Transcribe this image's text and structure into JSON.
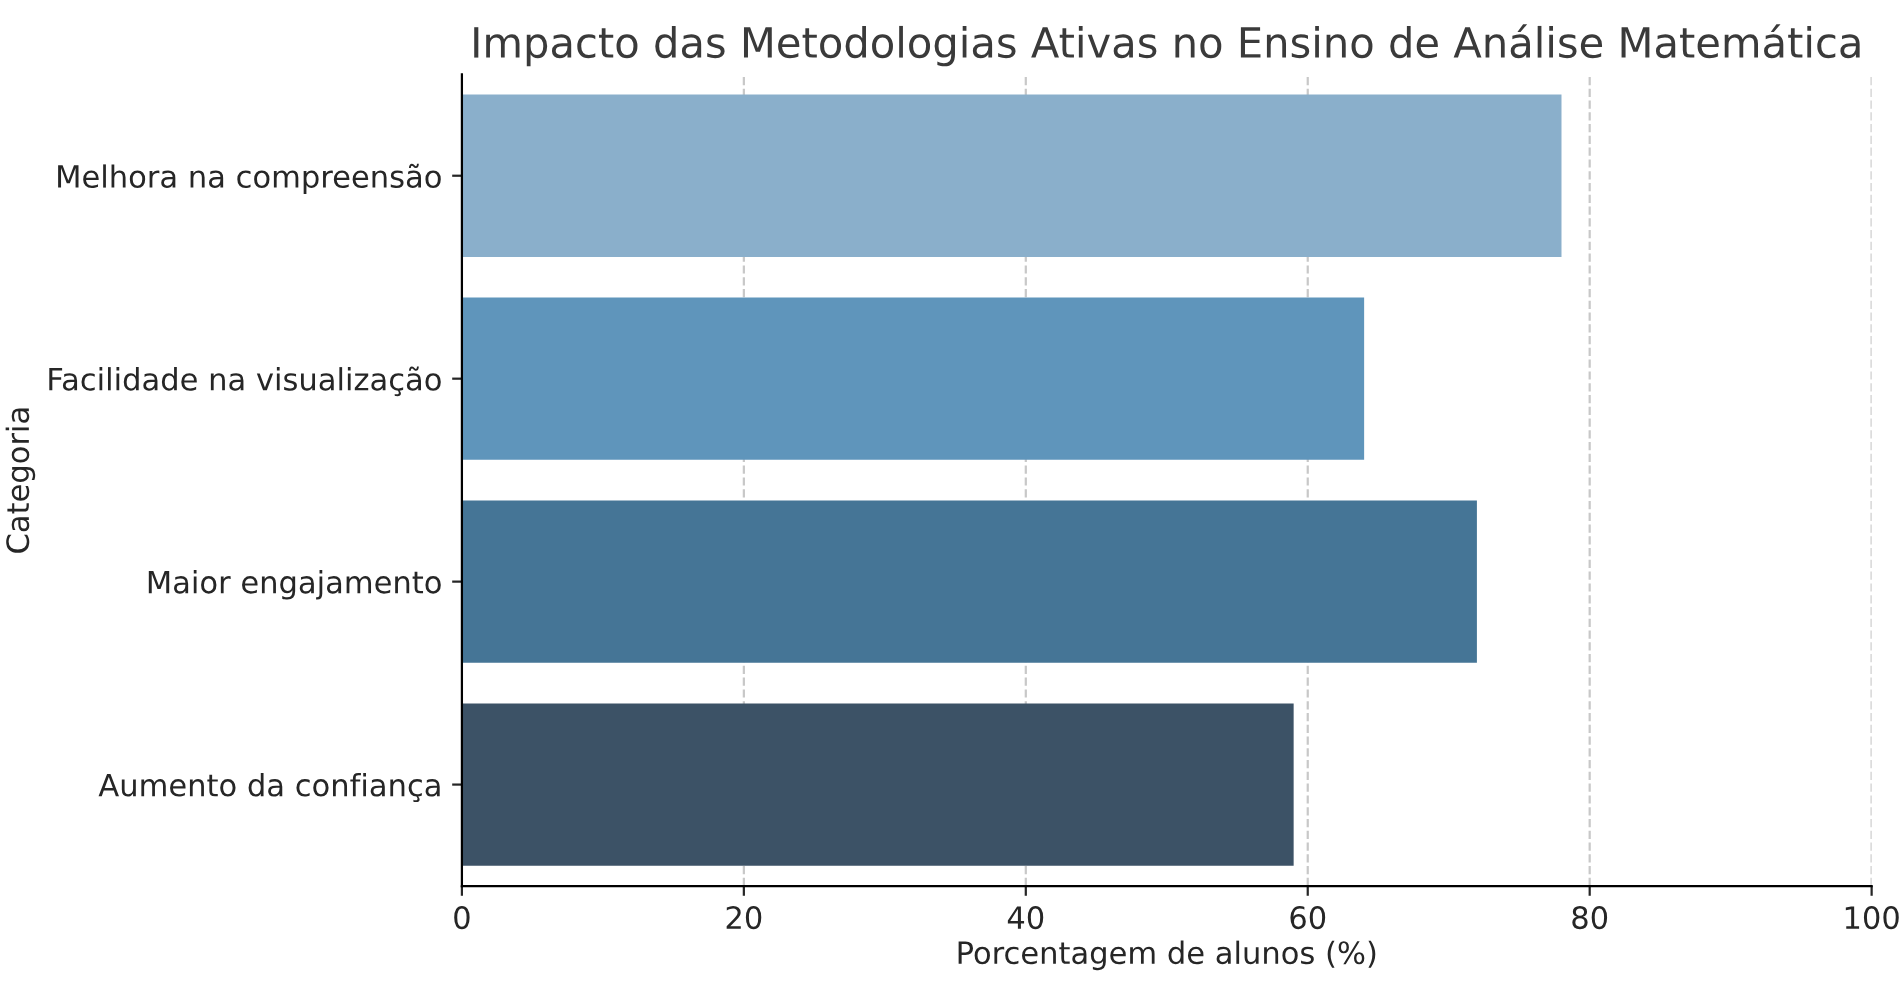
{
  "chart_data": {
    "type": "bar",
    "orientation": "horizontal",
    "title": "Impacto das Metodologias Ativas no Ensino de Análise Matemática",
    "xlabel": "Porcentagem de alunos (%)",
    "ylabel": "Categoria",
    "categories": [
      "Melhora na compreensão",
      "Facilidade na visualização",
      "Maior engajamento",
      "Aumento da confiança"
    ],
    "values": [
      78,
      64,
      72,
      59
    ],
    "colors": [
      "#8aafcb",
      "#5f95bb",
      "#457596",
      "#3c5266"
    ],
    "xlim": [
      0,
      100
    ],
    "xticks": [
      0,
      20,
      40,
      60,
      80,
      100
    ],
    "grid": "x"
  }
}
